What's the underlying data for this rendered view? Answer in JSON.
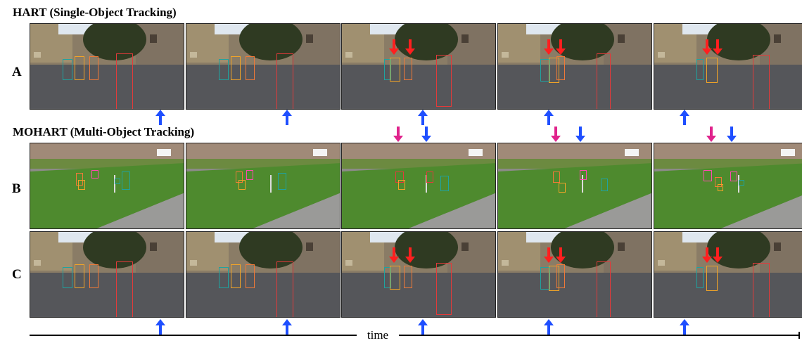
{
  "figure": {
    "section_a_title": "HART (Single-Object Tracking)",
    "section_b_title": "MOHART (Multi-Object Tracking)",
    "row_labels": [
      "A",
      "B",
      "C"
    ],
    "time_label": "time"
  },
  "colors": {
    "teal": "#1fa3a0",
    "yellow": "#f2a427",
    "orange": "#f07a38",
    "red": "#e23a3a",
    "pink": "#ff4ab0",
    "magenta": "#e0238c",
    "blue_arrow": "#1f4fff",
    "red_arrow": "#ff1f1f"
  }
}
